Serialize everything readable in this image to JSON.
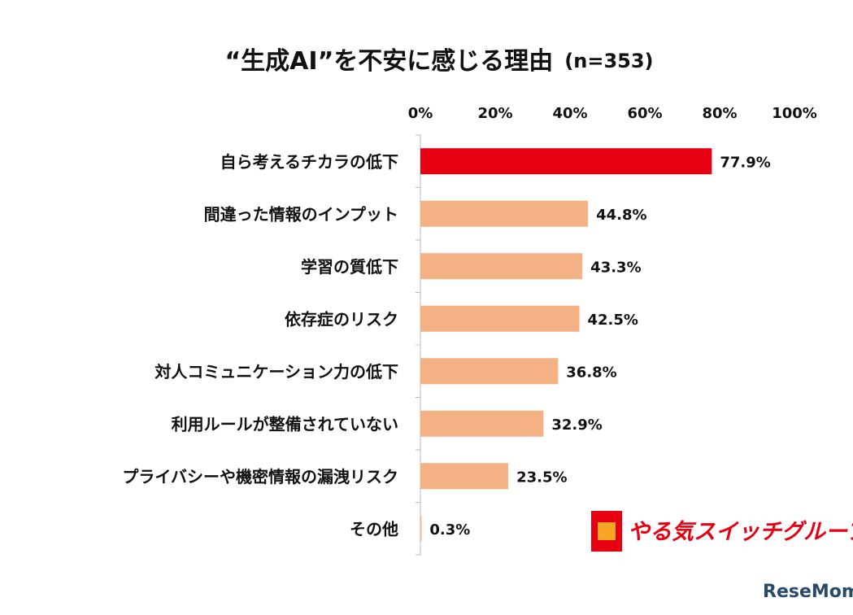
{
  "chart_data": {
    "type": "bar",
    "orientation": "horizontal",
    "title": "“生成AI”を不安に感じる理由",
    "subtitle": "(n=353)",
    "categories": [
      "自ら考えるチカラの低下",
      "間違った情報のインプット",
      "学習の質低下",
      "依存症のリスク",
      "対人コミュニケーション力の低下",
      "利用ルールが整備されていない",
      "プライバシーや機密情報の漏洩リスク",
      "その他"
    ],
    "values": [
      77.9,
      44.8,
      43.3,
      42.5,
      36.8,
      32.9,
      23.5,
      0.3
    ],
    "value_labels": [
      "77.9%",
      "44.8%",
      "43.3%",
      "42.5%",
      "36.8%",
      "32.9%",
      "23.5%",
      "0.3%"
    ],
    "colors": [
      "#e60012",
      "#f4b183",
      "#f4b183",
      "#f4b183",
      "#f4b183",
      "#f4b183",
      "#f4b183",
      "#f4b183"
    ],
    "xlim": [
      0,
      100
    ],
    "xticks": [
      {
        "value": 0,
        "label": "0%"
      },
      {
        "value": 20,
        "label": "20%"
      },
      {
        "value": 40,
        "label": "40%"
      },
      {
        "value": 60,
        "label": "60%"
      },
      {
        "value": 80,
        "label": "80%"
      },
      {
        "value": 100,
        "label": "100%"
      }
    ],
    "grid": false,
    "logo": "やる気スイッチグループ",
    "watermark": "ReseMom"
  }
}
